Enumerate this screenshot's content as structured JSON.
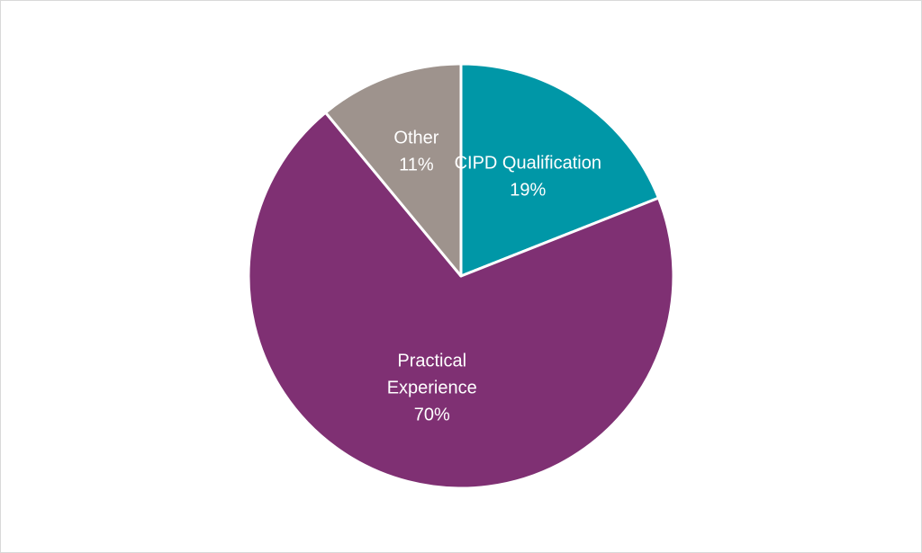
{
  "chart_data": {
    "type": "pie",
    "title": "",
    "legend": "none",
    "start_angle_deg": 0,
    "direction": "clockwise",
    "slices": [
      {
        "name": "CIPD Qualification",
        "label_lines": [
          "CIPD Qualification"
        ],
        "value": 19,
        "value_label": "19%",
        "color": "#0097A7"
      },
      {
        "name": "Practical Experience",
        "label_lines": [
          "Practical",
          "Experience"
        ],
        "value": 70,
        "value_label": "70%",
        "color": "#7F3073"
      },
      {
        "name": "Other",
        "label_lines": [
          "Other"
        ],
        "value": 11,
        "value_label": "11%",
        "color": "#9E938D"
      }
    ]
  }
}
